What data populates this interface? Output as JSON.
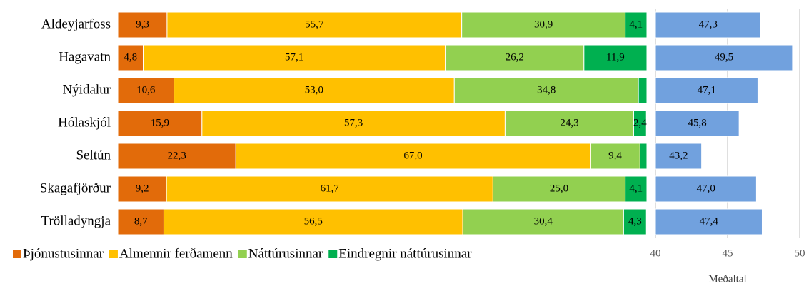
{
  "chart_data": [
    {
      "type": "stacked-bar",
      "orientation": "horizontal",
      "categories": [
        "Aldeyjarfoss",
        "Hagavatn",
        "Nýidalur",
        "Hólaskjól",
        "Seltún",
        "Skagafjörður",
        "Trölladyngja"
      ],
      "xlim": [
        0,
        100
      ],
      "legend": "bottom",
      "series": [
        {
          "name": "Þjónustusinnar",
          "color": "#e26b0a",
          "values": [
            9.3,
            4.8,
            10.6,
            15.9,
            22.3,
            9.2,
            8.7
          ],
          "value_labels": [
            "9,3",
            "4,8",
            "10,6",
            "15,9",
            "22,3",
            "9,2",
            "8,7"
          ]
        },
        {
          "name": "Almennir ferðamenn",
          "color": "#ffc000",
          "values": [
            55.7,
            57.1,
            53.0,
            57.3,
            67.0,
            61.7,
            56.5
          ],
          "value_labels": [
            "55,7",
            "57,1",
            "53,0",
            "57,3",
            "67,0",
            "61,7",
            "56,5"
          ]
        },
        {
          "name": "Náttúrusinnar",
          "color": "#92d050",
          "values": [
            30.9,
            26.2,
            34.8,
            24.3,
            9.4,
            25.0,
            30.4
          ],
          "value_labels": [
            "30,9",
            "26,2",
            "34,8",
            "24,3",
            "9,4",
            "25,0",
            "30,4"
          ]
        },
        {
          "name": "Eindregnir náttúrusinnar",
          "color": "#00b050",
          "values": [
            4.1,
            11.9,
            1.6,
            2.4,
            1.3,
            4.1,
            4.3
          ],
          "value_labels": [
            "4,1",
            "11,9",
            null,
            "2,4",
            null,
            "4,1",
            "4,3"
          ]
        }
      ]
    },
    {
      "type": "bar",
      "orientation": "horizontal",
      "xlabel": "Meðaltal",
      "color": "#71a1de",
      "values": [
        47.3,
        49.5,
        47.1,
        45.8,
        43.2,
        47.0,
        47.4
      ],
      "value_labels": [
        "47,3",
        "49,5",
        "47,1",
        "45,8",
        "43,2",
        "47,0",
        "47,4"
      ],
      "xlim": [
        40,
        50
      ],
      "xticks": [
        40,
        45,
        50
      ],
      "grid": true
    }
  ]
}
